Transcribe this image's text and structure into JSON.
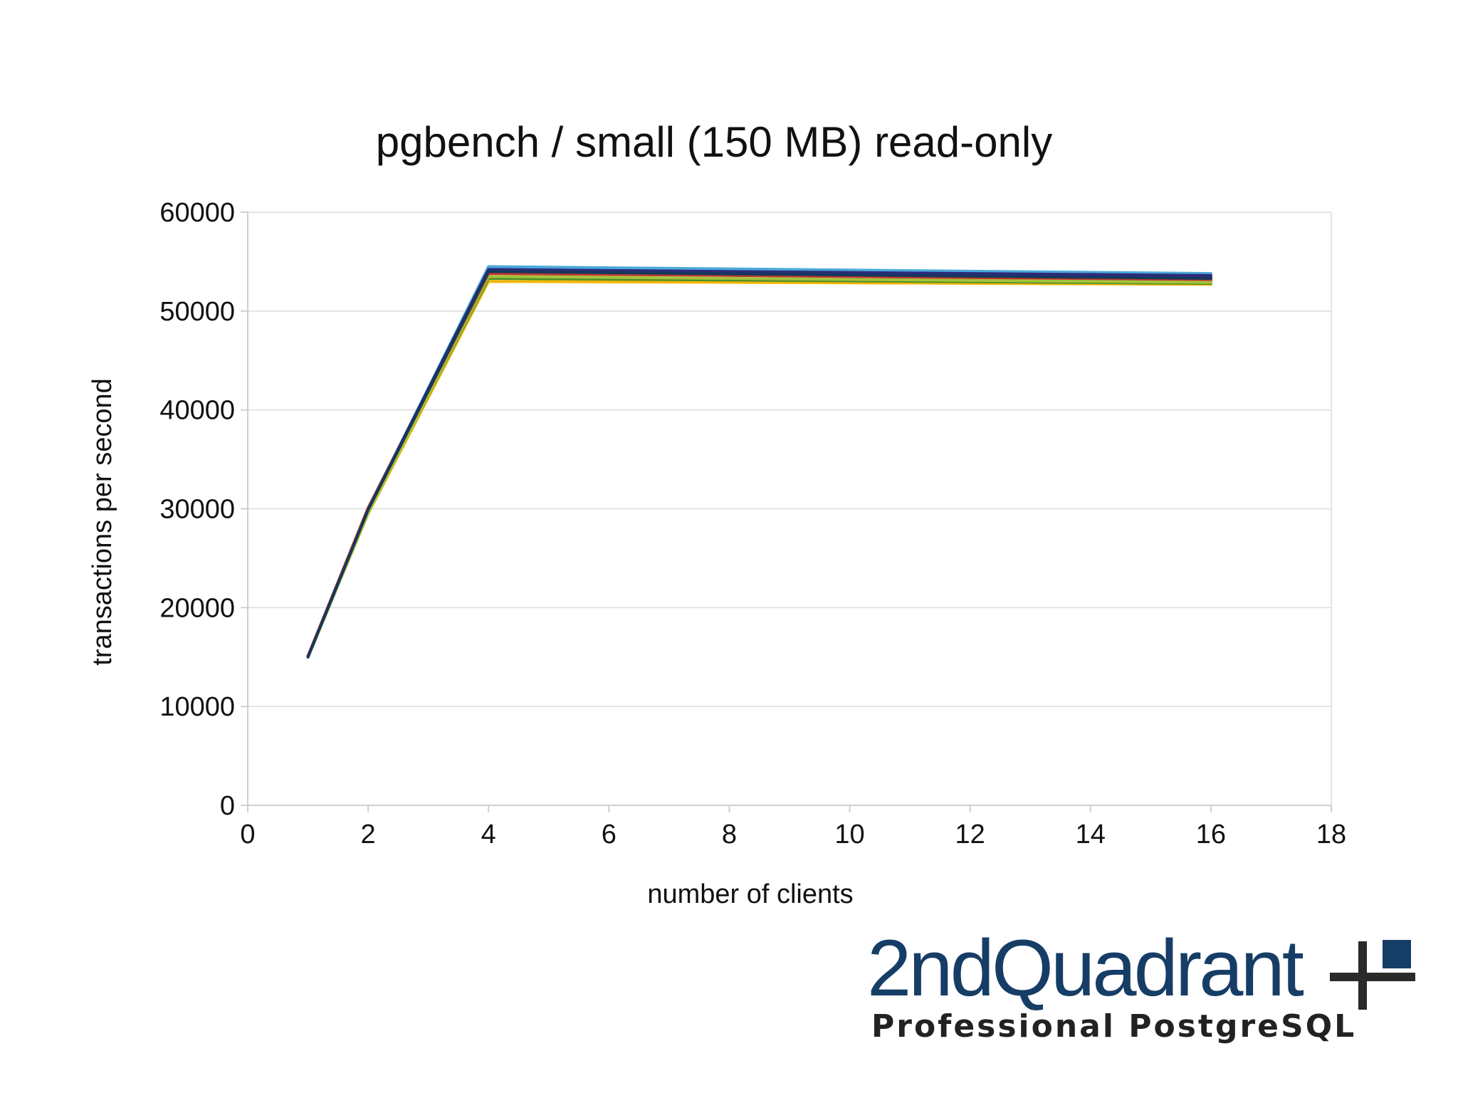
{
  "chart_data": {
    "type": "line",
    "title": "pgbench / small (150 MB) read-only",
    "xlabel": "number of clients",
    "ylabel": "transactions per second",
    "xlim": [
      0,
      18
    ],
    "ylim": [
      0,
      60000
    ],
    "xticks": [
      0,
      2,
      4,
      6,
      8,
      10,
      12,
      14,
      16,
      18
    ],
    "yticks": [
      0,
      10000,
      20000,
      30000,
      40000,
      50000,
      60000
    ],
    "grid": "horizontal",
    "legend": "none",
    "x": [
      1,
      2,
      4,
      16
    ],
    "series": [
      {
        "color": "#1f4e9c",
        "values": [
          15000,
          30000,
          54300,
          53500
        ]
      },
      {
        "color": "#d9432a",
        "values": [
          15100,
          30100,
          53900,
          53100
        ]
      },
      {
        "color": "#f2b705",
        "values": [
          15000,
          29500,
          53000,
          52700
        ]
      },
      {
        "color": "#4e8f2a",
        "values": [
          15050,
          29700,
          53300,
          52800
        ]
      },
      {
        "color": "#7a2a6e",
        "values": [
          15100,
          30000,
          54100,
          53400
        ]
      },
      {
        "color": "#4aa9d9",
        "values": [
          15000,
          29900,
          54500,
          53800
        ]
      },
      {
        "color": "#2d2a7a",
        "values": [
          15050,
          30000,
          54200,
          53600
        ]
      },
      {
        "color": "#a3c33a",
        "values": [
          15000,
          29600,
          53500,
          52900
        ]
      },
      {
        "color": "#c0392b",
        "values": [
          15100,
          30000,
          53800,
          53200
        ]
      },
      {
        "color": "#14375e",
        "values": [
          15000,
          29900,
          54000,
          53300
        ]
      }
    ]
  },
  "logo": {
    "name": "2ndQuadrant",
    "tagline": "Professional PostgreSQL",
    "brand_color": "#163d66"
  }
}
